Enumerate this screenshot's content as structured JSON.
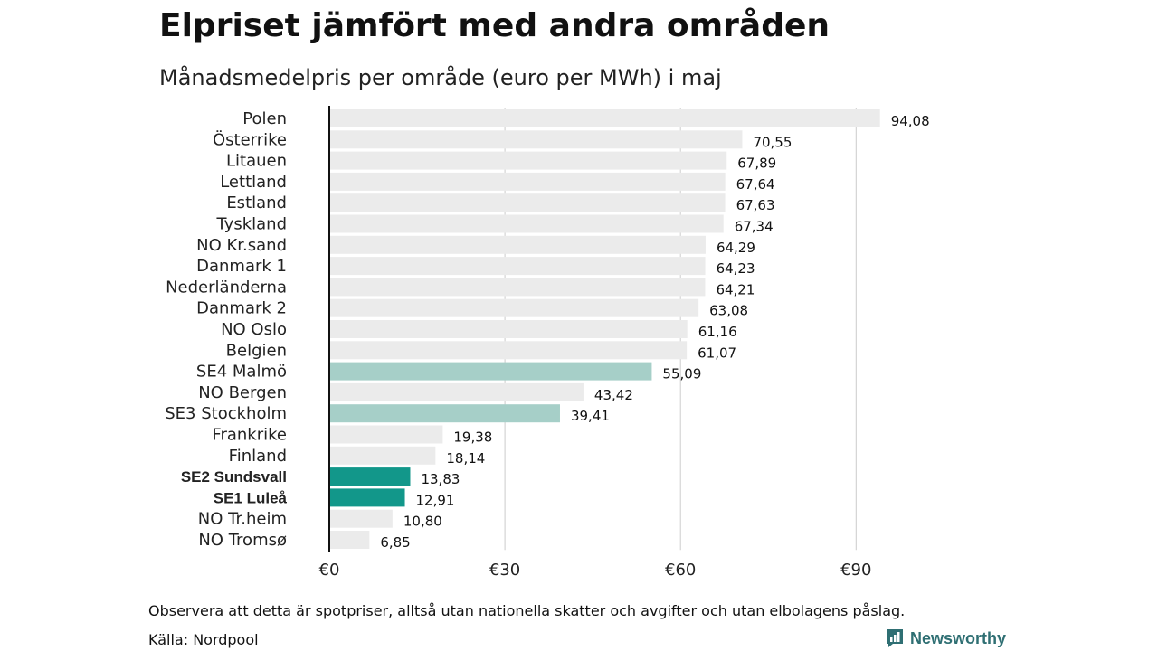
{
  "header": {
    "title": "Elpriset jämfört med andra områden",
    "subtitle": "Månadsmedelpris per område (euro per MWh) i maj"
  },
  "footer": {
    "note": "Observera att detta är spotpriser, alltså utan nationella skatter och avgifter och utan elbolagens påslag.",
    "source": "Källa: Nordpool",
    "brand": "Newsworthy",
    "brand_icon": "newsworthy-logo-icon"
  },
  "colors": {
    "default": "#ebebeb",
    "se_other": "#a6cfc8",
    "se_focus": "#12978a",
    "axis": "#111111",
    "grid": "#cccccc",
    "brand": "#2f6f73"
  },
  "chart_data": {
    "type": "bar",
    "orientation": "horizontal",
    "xlim": [
      0,
      100
    ],
    "ticks": [
      0,
      30,
      60,
      90
    ],
    "tick_labels": [
      "€0",
      "€30",
      "€60",
      "€90"
    ],
    "grid": true,
    "categories": [
      "Polen",
      "Österrike",
      "Litauen",
      "Lettland",
      "Estland",
      "Tyskland",
      "NO Kr.sand",
      "Danmark 1",
      "Nederländerna",
      "Danmark 2",
      "NO Oslo",
      "Belgien",
      "SE4 Malmö",
      "NO Bergen",
      "SE3 Stockholm",
      "Frankrike",
      "Finland",
      "SE2 Sundsvall",
      "SE1 Luleå",
      "NO Tr.heim",
      "NO Tromsø"
    ],
    "values": [
      94.08,
      70.55,
      67.89,
      67.64,
      67.63,
      67.34,
      64.29,
      64.23,
      64.21,
      63.08,
      61.16,
      61.07,
      55.09,
      43.42,
      39.41,
      19.38,
      18.14,
      13.83,
      12.91,
      10.8,
      6.85
    ],
    "value_labels": [
      "94,08",
      "70,55",
      "67,89",
      "67,64",
      "67,63",
      "67,34",
      "64,29",
      "64,23",
      "64,21",
      "63,08",
      "61,16",
      "61,07",
      "55,09",
      "43,42",
      "39,41",
      "19,38",
      "18,14",
      "13,83",
      "12,91",
      "10,80",
      "6,85"
    ],
    "highlight": {
      "SE4 Malmö": "se_other",
      "SE3 Stockholm": "se_other",
      "SE2 Sundsvall": "se_focus",
      "SE1 Luleå": "se_focus"
    },
    "bold_labels": [
      "SE2 Sundsvall",
      "SE1 Luleå"
    ]
  }
}
